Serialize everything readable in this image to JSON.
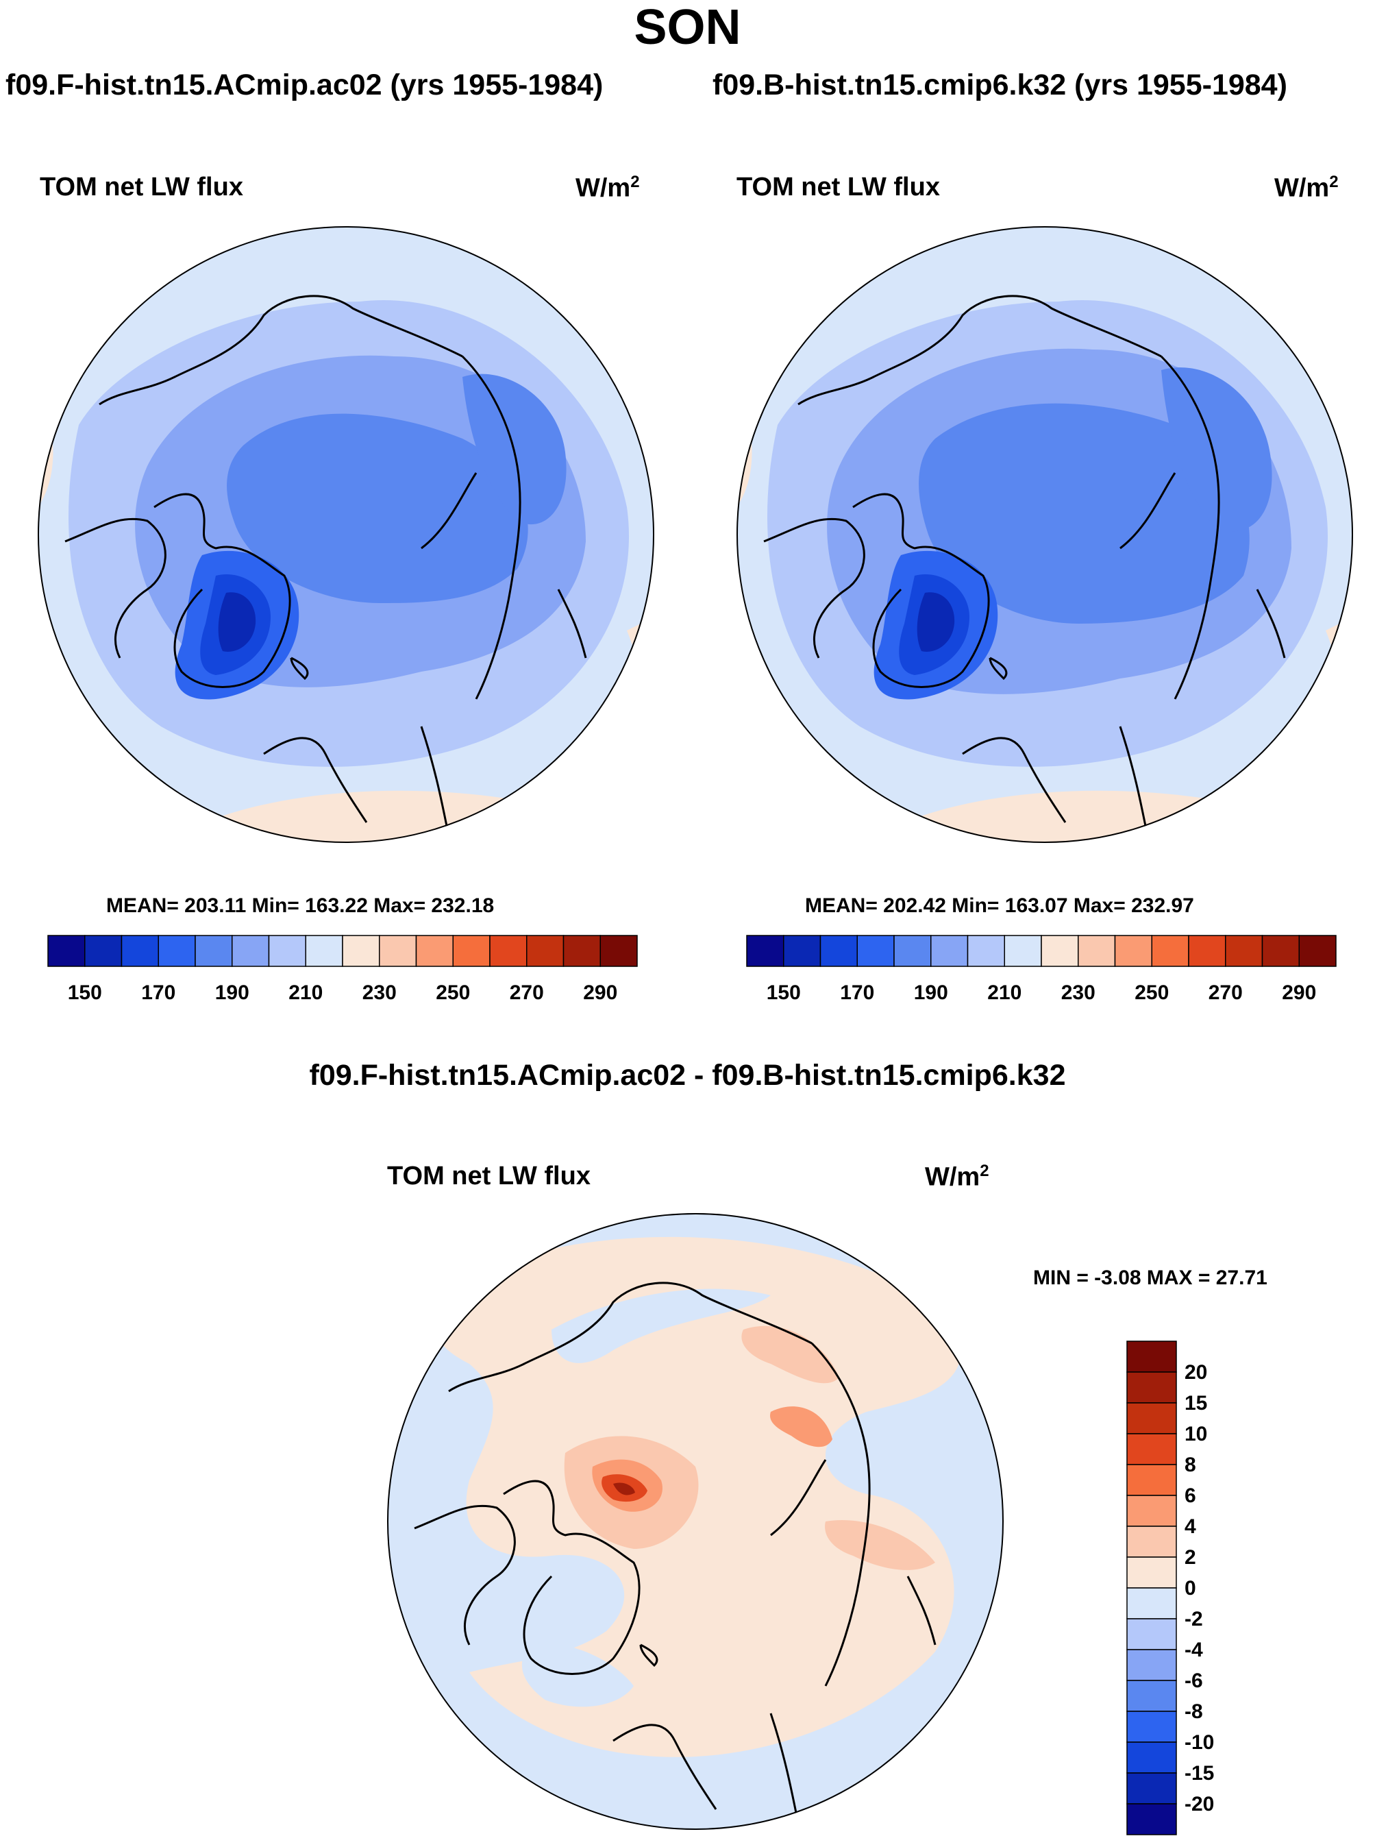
{
  "page": {
    "title": "SON"
  },
  "panels": [
    {
      "case_title": "f09.F-hist.tn15.ACmip.ac02 (yrs 1955-1984)",
      "variable": "TOM net LW flux",
      "units": "W/m",
      "units_exp": "2",
      "stats": "MEAN= 203.11  Min= 163.22  Max= 232.18"
    },
    {
      "case_title": "f09.B-hist.tn15.cmip6.k32 (yrs 1955-1984)",
      "variable": "TOM net LW flux",
      "units": "W/m",
      "units_exp": "2",
      "stats": "MEAN= 202.42  Min= 163.07  Max= 232.97"
    }
  ],
  "difference": {
    "title": "f09.F-hist.tn15.ACmip.ac02 - f09.B-hist.tn15.cmip6.k32",
    "variable": "TOM net LW flux",
    "units": "W/m",
    "units_exp": "2",
    "stats": "MIN =  -3.08 MAX =  27.71"
  },
  "chart_data": [
    {
      "type": "heatmap",
      "title": "f09.F-hist.tn15.ACmip.ac02 (yrs 1955-1984)",
      "variable": "TOM net LW flux",
      "units": "W/m2",
      "projection": "north polar stereographic",
      "mean": 203.11,
      "min": 163.22,
      "max": 232.18,
      "colorbar": {
        "orientation": "horizontal",
        "levels": [
          150,
          160,
          170,
          180,
          190,
          200,
          210,
          220,
          230,
          240,
          250,
          260,
          270,
          280,
          290
        ],
        "tick_labels": [
          "150",
          "170",
          "190",
          "210",
          "230",
          "250",
          "270",
          "290"
        ],
        "colors": [
          "#08088c",
          "#0a28b4",
          "#1446dc",
          "#2d64f0",
          "#5a87f0",
          "#87a5f5",
          "#b4c8fa",
          "#d7e6fa",
          "#fae6d7",
          "#fac8af",
          "#fa9b73",
          "#f56e3c",
          "#e1461e",
          "#c3320f",
          "#a01e0a",
          "#780a05"
        ]
      }
    },
    {
      "type": "heatmap",
      "title": "f09.B-hist.tn15.cmip6.k32 (yrs 1955-1984)",
      "variable": "TOM net LW flux",
      "units": "W/m2",
      "projection": "north polar stereographic",
      "mean": 202.42,
      "min": 163.07,
      "max": 232.97,
      "colorbar": {
        "orientation": "horizontal",
        "levels": [
          150,
          160,
          170,
          180,
          190,
          200,
          210,
          220,
          230,
          240,
          250,
          260,
          270,
          280,
          290
        ],
        "tick_labels": [
          "150",
          "170",
          "190",
          "210",
          "230",
          "250",
          "270",
          "290"
        ],
        "colors": [
          "#08088c",
          "#0a28b4",
          "#1446dc",
          "#2d64f0",
          "#5a87f0",
          "#87a5f5",
          "#b4c8fa",
          "#d7e6fa",
          "#fae6d7",
          "#fac8af",
          "#fa9b73",
          "#f56e3c",
          "#e1461e",
          "#c3320f",
          "#a01e0a",
          "#780a05"
        ]
      }
    },
    {
      "type": "heatmap",
      "title": "f09.F-hist.tn15.ACmip.ac02 - f09.B-hist.tn15.cmip6.k32",
      "variable": "TOM net LW flux",
      "units": "W/m2",
      "projection": "north polar stereographic",
      "min": -3.08,
      "max": 27.71,
      "colorbar": {
        "orientation": "vertical",
        "levels": [
          20,
          15,
          10,
          8,
          6,
          4,
          2,
          0,
          -2,
          -4,
          -6,
          -8,
          -10,
          -15,
          -20
        ],
        "tick_labels": [
          "20",
          "15",
          "10",
          "8",
          "6",
          "4",
          "2",
          "0",
          "-2",
          "-4",
          "-6",
          "-8",
          "-10",
          "-15",
          "-20"
        ],
        "colors": [
          "#780a05",
          "#a01e0a",
          "#c3320f",
          "#e1461e",
          "#f56e3c",
          "#fa9b73",
          "#fac8af",
          "#fae6d7",
          "#d7e6fa",
          "#b4c8fa",
          "#87a5f5",
          "#5a87f0",
          "#2d64f0",
          "#1446dc",
          "#0a28b4",
          "#08088c"
        ]
      }
    }
  ]
}
